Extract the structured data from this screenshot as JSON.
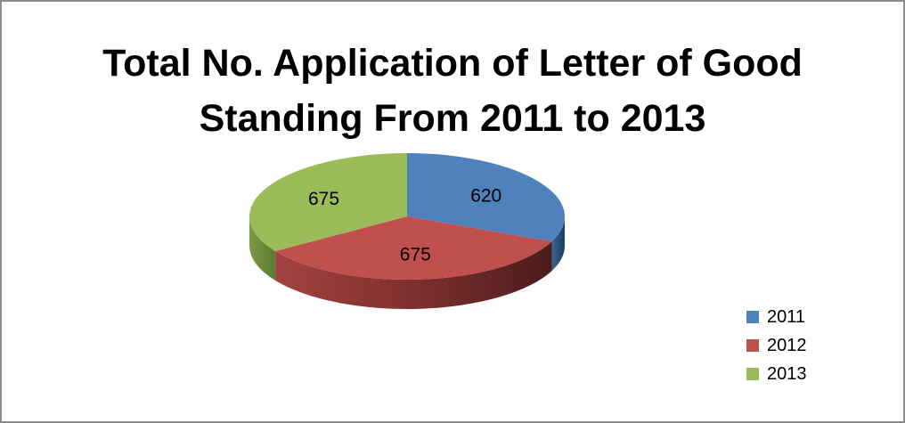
{
  "chart_data": {
    "type": "pie",
    "title_lines": [
      "Total No. Application of Letter of Good",
      "Standing From 2011 to 2013"
    ],
    "categories": [
      "2011",
      "2012",
      "2013"
    ],
    "values": [
      620,
      675,
      675
    ],
    "data_labels": [
      "620",
      "675",
      "675"
    ],
    "colors": [
      "#4f81bd",
      "#c0504d",
      "#9bbb59"
    ],
    "side_colors": [
      "#2c4d75",
      "#7a2e2c",
      "#5c7a30"
    ],
    "legend_position": "right",
    "three_d": true
  }
}
